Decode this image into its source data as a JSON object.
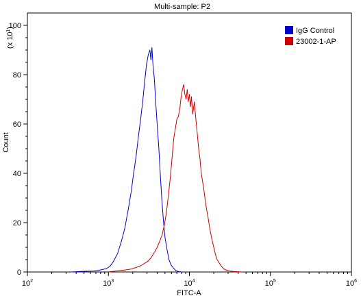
{
  "chart_data": {
    "type": "line",
    "title": "Multi-sample: P2",
    "xlabel": "FITC-A",
    "ylabel": "Count",
    "y_multiplier": "(x 10",
    "y_multiplier_exp": "1",
    "y_multiplier_close": ")",
    "x_scale": "log",
    "xlim": [
      100,
      1000000
    ],
    "ylim": [
      0,
      105
    ],
    "x_ticks": [
      {
        "base": "10",
        "exp": "2",
        "value": 100
      },
      {
        "base": "10",
        "exp": "3",
        "value": 1000
      },
      {
        "base": "10",
        "exp": "4",
        "value": 10000
      },
      {
        "base": "10",
        "exp": "5",
        "value": 100000
      },
      {
        "base": "10",
        "exp": "6",
        "value": 1000000
      }
    ],
    "y_ticks": [
      {
        "label": "0",
        "value": 0
      },
      {
        "label": "20",
        "value": 20
      },
      {
        "label": "40",
        "value": 40
      },
      {
        "label": "60",
        "value": 60
      },
      {
        "label": "80",
        "value": 80
      },
      {
        "label": "100",
        "value": 100
      }
    ],
    "grid": false,
    "legend_position": "top-right",
    "series": [
      {
        "name": "IgG Control",
        "color": "#0000cc",
        "x": [
          350,
          450,
          550,
          650,
          750,
          850,
          950,
          1050,
          1150,
          1300,
          1450,
          1600,
          1750,
          1900,
          2050,
          2200,
          2350,
          2500,
          2650,
          2800,
          2950,
          3100,
          3250,
          3350,
          3450,
          3550,
          3700,
          3850,
          4000,
          4200,
          4400,
          4600,
          4800,
          5000,
          5300,
          5600,
          5900,
          6200,
          6500,
          6800,
          7100,
          7500,
          8000
        ],
        "values": [
          0,
          0.2,
          0.3,
          0.4,
          0.6,
          1.0,
          1.4,
          2.4,
          4.2,
          7.5,
          12.5,
          18,
          25,
          32,
          40,
          47,
          55,
          62,
          69,
          77,
          84,
          88,
          90,
          86,
          91,
          84,
          78,
          68,
          60,
          50,
          38,
          28,
          20,
          14,
          9,
          5,
          3,
          2,
          1.2,
          0.6,
          0.3,
          0.1,
          0
        ]
      },
      {
        "name": "23002-1-AP",
        "color": "#cc0000",
        "x": [
          1000,
          1300,
          1600,
          1900,
          2200,
          2500,
          2800,
          3100,
          3400,
          3700,
          4000,
          4300,
          4600,
          4900,
          5200,
          5500,
          5800,
          6100,
          6400,
          6700,
          7000,
          7300,
          7600,
          7900,
          8200,
          8500,
          8800,
          9100,
          9400,
          9700,
          10000,
          10300,
          10600,
          11000,
          11500,
          12000,
          12500,
          13000,
          13500,
          14000,
          15000,
          16000,
          17000,
          18000,
          19000,
          20000,
          21000,
          22000,
          23000,
          24000,
          25000,
          26000,
          27000,
          29000,
          32000,
          35000,
          40000,
          45000
        ],
        "values": [
          0,
          0.5,
          0.8,
          1.2,
          1.8,
          2.5,
          3.5,
          4.5,
          6,
          8,
          10,
          12.5,
          15,
          19,
          24,
          31,
          38,
          46,
          54,
          58,
          62,
          63,
          66,
          71,
          74,
          76,
          72,
          70,
          74,
          69,
          72,
          67,
          71,
          64,
          69,
          62,
          56,
          50,
          46,
          40,
          34,
          27,
          22,
          17,
          13,
          10,
          7,
          5,
          4,
          3,
          2.2,
          1.6,
          1.1,
          0.7,
          0.4,
          0.2,
          0.1,
          0
        ]
      }
    ]
  }
}
